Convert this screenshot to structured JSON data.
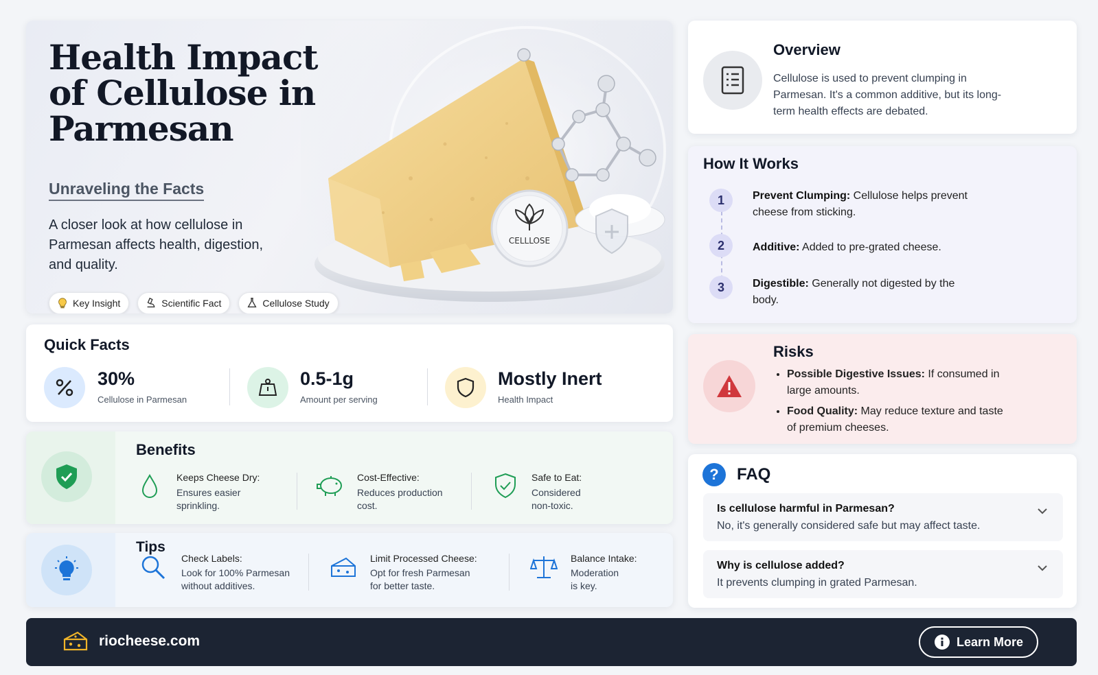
{
  "hero": {
    "title": "Health Impact of Cellulose in Parmesan",
    "subtitle": "Unraveling the Facts",
    "description": "A closer look at how cellulose in Parmesan affects health, digestion, and quality.",
    "badge_label": "CELLLOSE",
    "chips": [
      {
        "label": "Key Insight",
        "icon": "lightbulb-icon"
      },
      {
        "label": "Scientific Fact",
        "icon": "microscope-icon"
      },
      {
        "label": "Cellulose Study",
        "icon": "flask-icon"
      }
    ]
  },
  "overview": {
    "title": "Overview",
    "text": "Cellulose is used to prevent clumping in Parmesan. It's a common additive, but its long-term health effects are debated.",
    "icon": "document-icon"
  },
  "how_it_works": {
    "title": "How It Works",
    "steps": [
      {
        "num": "1",
        "bold": "Prevent Clumping:",
        "text": " Cellulose helps prevent cheese from sticking."
      },
      {
        "num": "2",
        "bold": "Additive:",
        "text": " Added to pre-grated cheese."
      },
      {
        "num": "3",
        "bold": "Digestible:",
        "text": " Generally not digested by the body."
      }
    ]
  },
  "risks": {
    "title": "Risks",
    "icon": "warning-icon",
    "items": [
      {
        "bold": "Possible Digestive Issues:",
        "text": " If consumed in large amounts."
      },
      {
        "bold": "Food Quality:",
        "text": " May reduce texture and taste of premium cheeses."
      }
    ]
  },
  "faq": {
    "title": "FAQ",
    "items": [
      {
        "q": "Is cellulose harmful in Parmesan?",
        "a": "No, it's generally considered safe but may affect taste."
      },
      {
        "q": "Why is cellulose added?",
        "a": "It prevents clumping in grated Parmesan."
      }
    ]
  },
  "quick_facts": {
    "title": "Quick Facts",
    "items": [
      {
        "value": "30%",
        "label": "Cellulose in Parmesan",
        "icon": "percent-icon",
        "color": "#dbeafe"
      },
      {
        "value": "0.5-1g",
        "label": "Amount per serving",
        "icon": "scale-icon",
        "color": "#dcf3e6"
      },
      {
        "value": "Mostly Inert",
        "label": "Health Impact",
        "icon": "shield-icon",
        "color": "#fdf1cf"
      }
    ]
  },
  "benefits": {
    "title": "Benefits",
    "items": [
      {
        "title": "Keeps Cheese Dry:",
        "body": [
          "Ensures easier",
          "sprinkling."
        ],
        "icon": "droplet-icon"
      },
      {
        "title": "Cost-Effective:",
        "body": [
          "Reduces production",
          "cost."
        ],
        "icon": "piggy-bank-icon"
      },
      {
        "title": "Safe to Eat:",
        "body": [
          "Considered",
          "non-toxic."
        ],
        "icon": "shield-check-icon"
      }
    ]
  },
  "tips": {
    "title": "Tips",
    "items": [
      {
        "title": "Check Labels:",
        "body": [
          "Look for 100% Parmesan",
          "without additives."
        ],
        "icon": "magnifier-icon"
      },
      {
        "title": "Limit Processed Cheese:",
        "body": [
          "Opt for fresh Parmesan",
          "for better taste."
        ],
        "icon": "cheese-icon"
      },
      {
        "title": "Balance Intake:",
        "body": [
          "Moderation",
          "is key."
        ],
        "icon": "balance-scale-icon"
      }
    ]
  },
  "footer": {
    "site": "riocheese.com",
    "button_label": "Learn More"
  },
  "colors": {
    "accent_green": "#1f9d55",
    "accent_blue": "#1d74d8",
    "accent_red": "#d0383d",
    "accent_purple": "#2b2f6e",
    "footer_bg": "#1c2433"
  }
}
